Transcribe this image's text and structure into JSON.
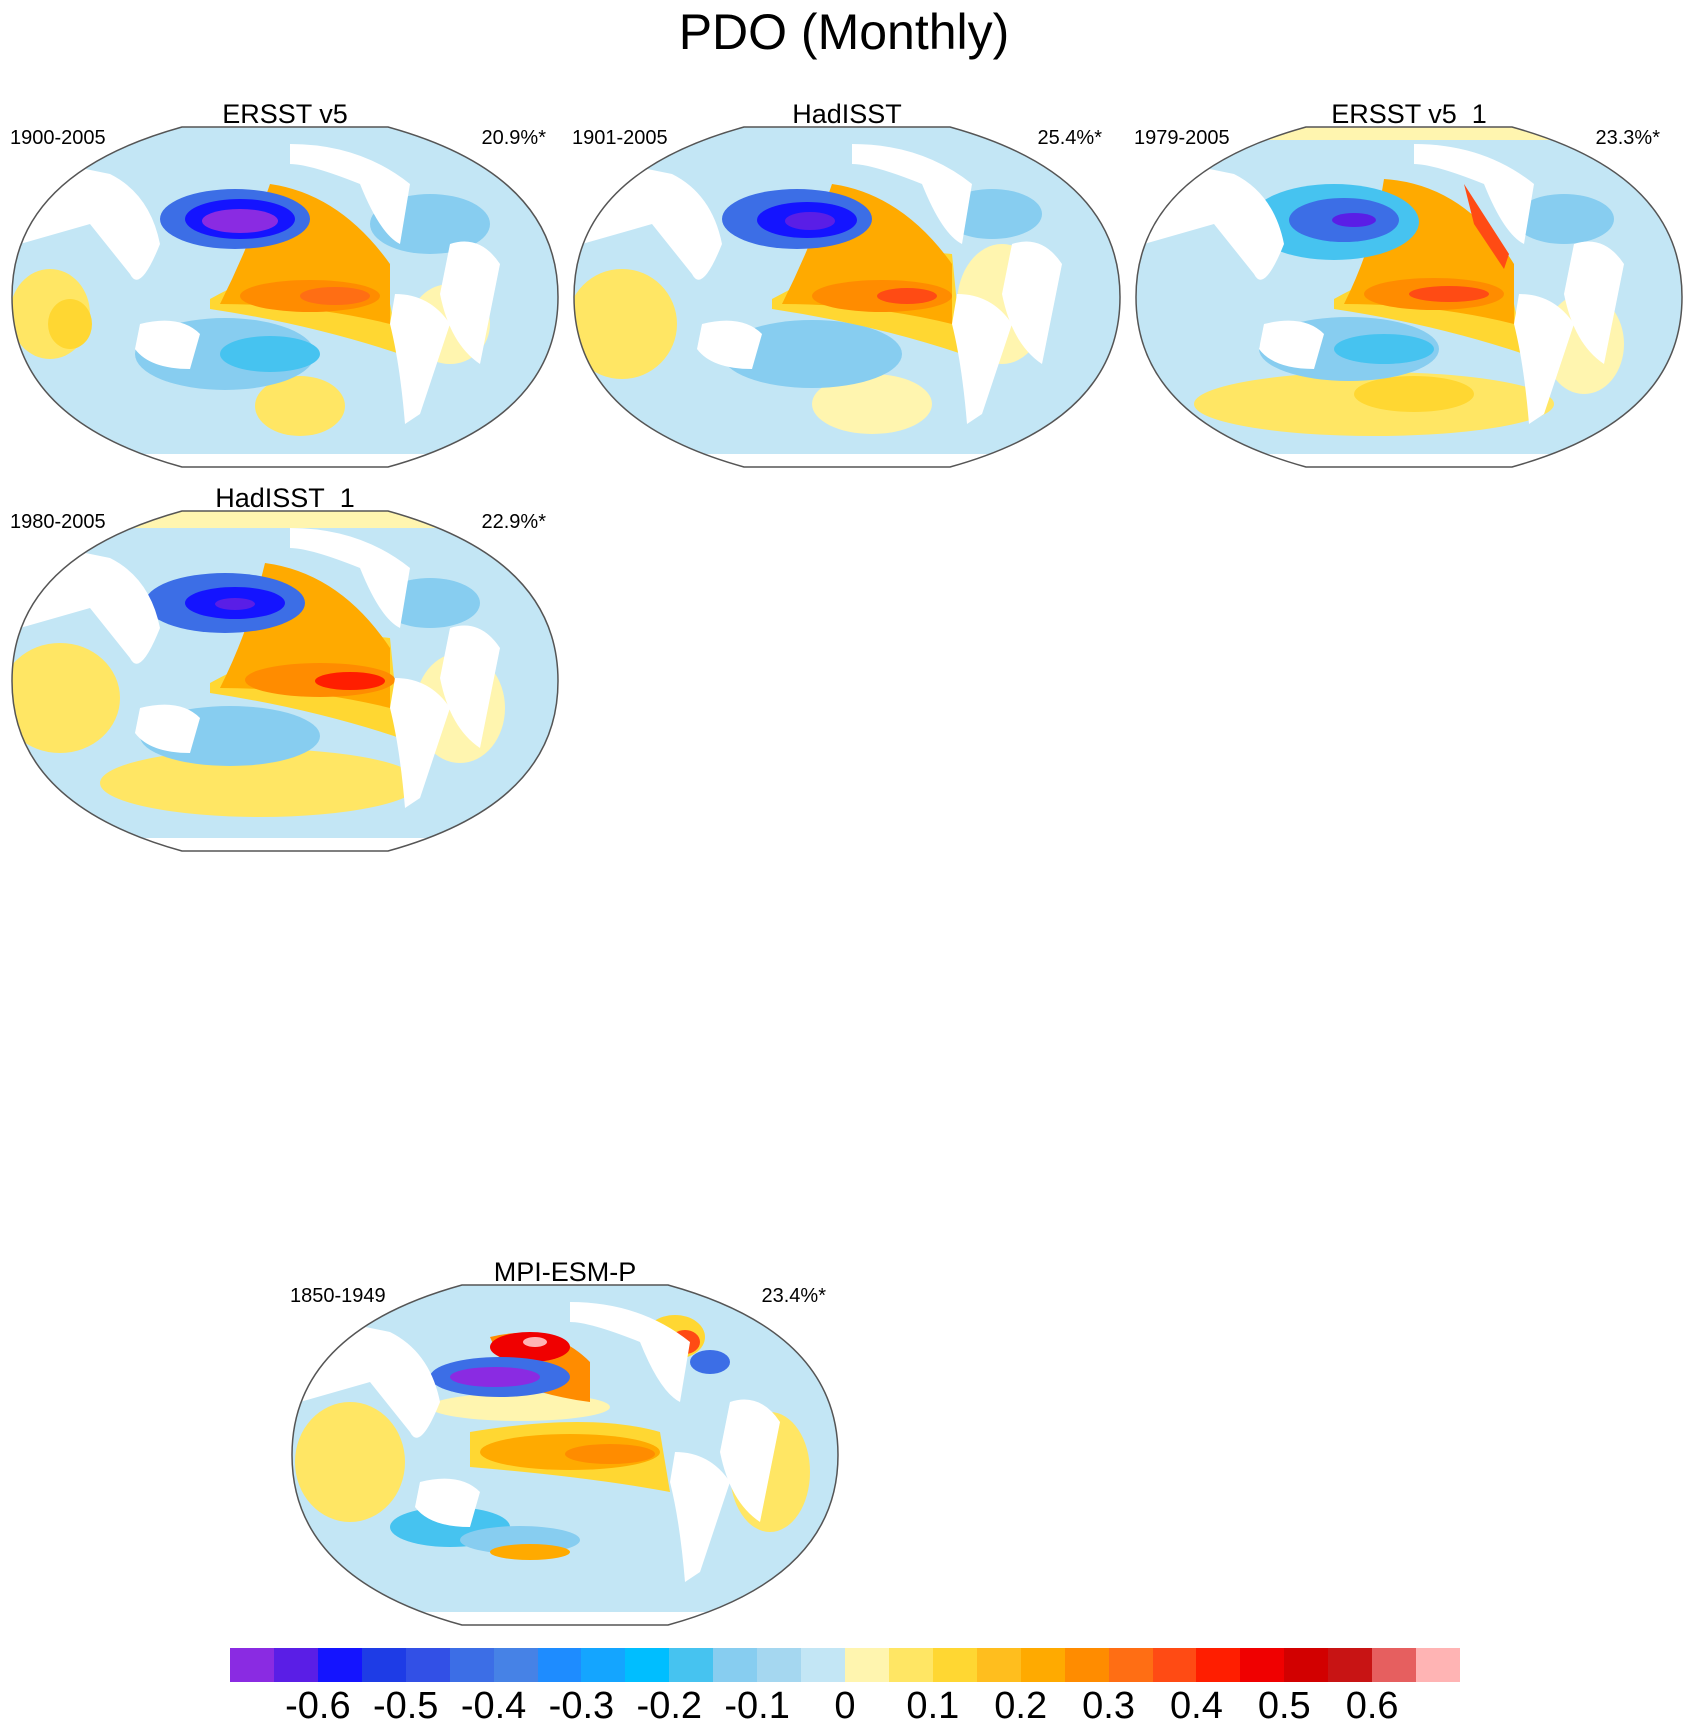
{
  "title": "PDO (Monthly)",
  "panels": [
    {
      "title": "ERSST v5",
      "period": "1900-2005",
      "percent": "20.9%*"
    },
    {
      "title": "HadISST",
      "period": "1901-2005",
      "percent": "25.4%*"
    },
    {
      "title": "ERSST v5_1",
      "period": "1979-2005",
      "percent": "23.3%*"
    },
    {
      "title": "HadISST_1",
      "period": "1980-2005",
      "percent": "22.9%*"
    },
    {
      "title": "MPI-ESM-P",
      "period": "1850-1949",
      "percent": "23.4%*"
    }
  ],
  "colorbar": {
    "colors": [
      "#8a2be2",
      "#5a1ee6",
      "#1414ff",
      "#1e3ce6",
      "#3250e6",
      "#3c6ee6",
      "#4682e6",
      "#1e8cff",
      "#14a5ff",
      "#00beff",
      "#46c3f0",
      "#87cdf0",
      "#a5d7f0",
      "#c3e6f5",
      "#fff5af",
      "#ffe664",
      "#ffd732",
      "#ffbe1e",
      "#ffaa00",
      "#ff8c00",
      "#ff6e14",
      "#ff4b14",
      "#ff1e00",
      "#f00000",
      "#d20000",
      "#c81414",
      "#e65f5f",
      "#ffb4b4"
    ],
    "labels": [
      "-0.6",
      "-0.5",
      "-0.4",
      "-0.3",
      "-0.2",
      "-0.1",
      "0",
      "0.1",
      "0.2",
      "0.3",
      "0.4",
      "0.5",
      "0.6"
    ]
  }
}
